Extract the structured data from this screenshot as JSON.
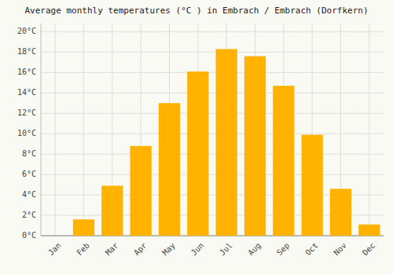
{
  "chart_data": {
    "type": "bar",
    "title": "Average monthly temperatures (°C ) in Embrach / Embrach (Dorfkern)",
    "categories": [
      "Jan",
      "Feb",
      "Mar",
      "Apr",
      "May",
      "Jun",
      "Jul",
      "Aug",
      "Sep",
      "Oct",
      "Nov",
      "Dec"
    ],
    "values": [
      0.0,
      1.6,
      4.9,
      8.8,
      13.0,
      16.1,
      18.3,
      17.6,
      14.7,
      9.9,
      4.6,
      1.1
    ],
    "color": "#FFB300",
    "ylim": [
      0,
      20.8
    ],
    "yticks": [
      {
        "value": 0,
        "label": "0°C"
      },
      {
        "value": 2,
        "label": "2°C"
      },
      {
        "value": 4,
        "label": "4°C"
      },
      {
        "value": 6,
        "label": "6°C"
      },
      {
        "value": 8,
        "label": "8°C"
      },
      {
        "value": 10,
        "label": "10°C"
      },
      {
        "value": 12,
        "label": "12°C"
      },
      {
        "value": 14,
        "label": "14°C"
      },
      {
        "value": 16,
        "label": "16°C"
      },
      {
        "value": 18,
        "label": "18°C"
      },
      {
        "value": 20,
        "label": "20°C"
      }
    ],
    "grid": true
  }
}
